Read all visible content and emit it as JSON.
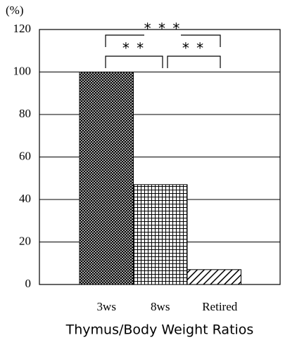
{
  "chart_data": {
    "type": "bar",
    "ylabel": "(%)",
    "xlabel": "Thymus/Body Weight Ratios",
    "categories": [
      "3ws",
      "8ws",
      "Retired"
    ],
    "values": [
      100,
      47,
      7
    ],
    "color": "#000000",
    "ylim": [
      0,
      120
    ],
    "yticks": [
      0,
      20,
      40,
      60,
      80,
      100,
      120
    ],
    "grid": true,
    "annotations": [
      "* * *",
      "* *",
      "* *"
    ]
  }
}
